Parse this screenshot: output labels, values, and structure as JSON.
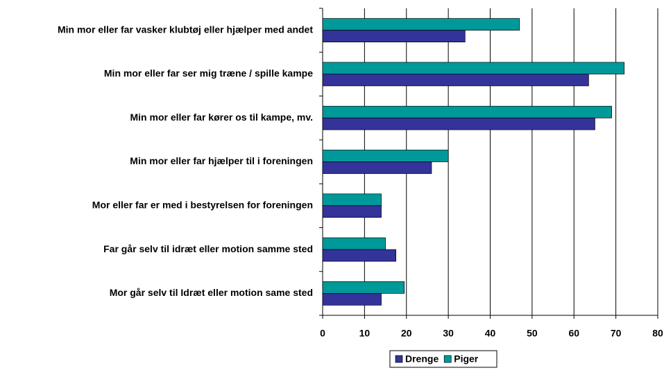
{
  "chart_data": {
    "type": "hbar",
    "categories": [
      "Min mor eller far vasker klubtøj eller hjælper med andet",
      "Min mor eller far ser mig træne / spille kampe",
      "Min mor eller far kører os til kampe, mv.",
      "Min mor eller far hjælper til i foreningen",
      "Mor eller far er med i bestyrelsen for foreningen",
      "Far går selv til idræt eller motion samme sted",
      "Mor går selv til Idræt eller motion same sted"
    ],
    "series": [
      {
        "name": "Drenge",
        "color": "#333399",
        "values": [
          34,
          63.5,
          65,
          26,
          14,
          17.5,
          14
        ]
      },
      {
        "name": "Piger",
        "color": "#009999",
        "values": [
          47,
          72,
          69,
          30,
          14,
          15,
          19.5
        ]
      }
    ],
    "xlim": [
      0,
      80
    ],
    "xticks": [
      0,
      10,
      20,
      30,
      40,
      50,
      60,
      70,
      80
    ],
    "grid": true,
    "legend": "bottom"
  }
}
